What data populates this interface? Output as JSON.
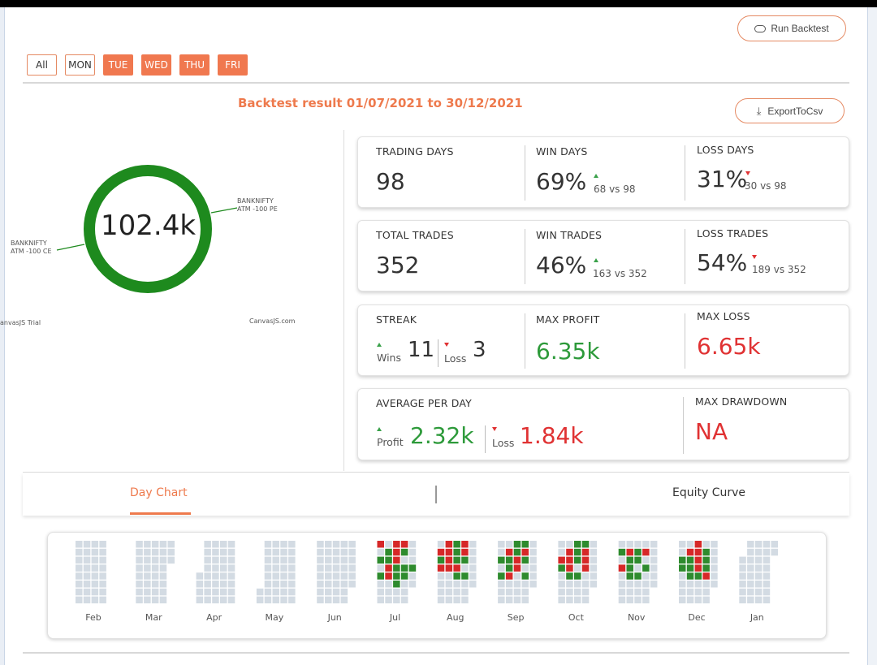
{
  "toolbar": {
    "run_backtest_label": "Run Backtest",
    "export_label": "ExportToCsv"
  },
  "day_filters": [
    {
      "label": "All",
      "active": false
    },
    {
      "label": "MON",
      "active": false
    },
    {
      "label": "TUE",
      "active": true
    },
    {
      "label": "WED",
      "active": true
    },
    {
      "label": "THU",
      "active": true
    },
    {
      "label": "FRI",
      "active": true
    }
  ],
  "result_title": "Backtest result 01/07/2021 to 30/12/2021",
  "donut": {
    "center_value": "102.4k",
    "label_right_line1": "BANKNIFTY",
    "label_right_line2": "ATM -100 PE",
    "label_left_line1": "BANKNIFTY",
    "label_left_line2": "ATM -100 CE",
    "credit_left": "anvasJS Trial",
    "credit_right": "CanvasJS.com",
    "color": "#1e8a1e"
  },
  "stats": {
    "trading_days": {
      "label": "TRADING DAYS",
      "value": "98"
    },
    "win_days": {
      "label": "WIN DAYS",
      "value": "69%",
      "sub": "68 vs 98"
    },
    "loss_days": {
      "label": "LOSS DAYS",
      "value": "31%",
      "sub": "30 vs 98"
    },
    "total_trades": {
      "label": "TOTAL TRADES",
      "value": "352"
    },
    "win_trades": {
      "label": "WIN TRADES",
      "value": "46%",
      "sub": "163 vs 352"
    },
    "loss_trades": {
      "label": "LOSS TRADES",
      "value": "54%",
      "sub": "189 vs 352"
    },
    "streak": {
      "label": "STREAK",
      "wins_label": "Wins",
      "wins_value": "11",
      "loss_label": "Loss",
      "loss_value": "3"
    },
    "max_profit": {
      "label": "MAX PROFIT",
      "value": "6.35k"
    },
    "max_loss": {
      "label": "MAX LOSS",
      "value": "6.65k"
    },
    "average_per_day": {
      "label": "AVERAGE PER DAY",
      "profit_label": "Profit",
      "profit_value": "2.32k",
      "loss_label": "Loss",
      "loss_value": "1.84k"
    },
    "max_drawdown": {
      "label": "MAX DRAWDOWN",
      "value": "NA"
    }
  },
  "tabs": [
    {
      "label": "Day Chart",
      "active": true
    },
    {
      "label": "Equity Curve",
      "active": false
    }
  ],
  "heatmap": {
    "months": [
      "Feb",
      "Mar",
      "Apr",
      "May",
      "Jun",
      "Jul",
      "Aug",
      "Sep",
      "Oct",
      "Nov",
      "Dec",
      "Jan"
    ],
    "colors": {
      "empty": "#d3dbe3",
      "win": "#2e8b2e",
      "loss": "#d62828",
      "neutral": "#c7d1da"
    }
  }
}
